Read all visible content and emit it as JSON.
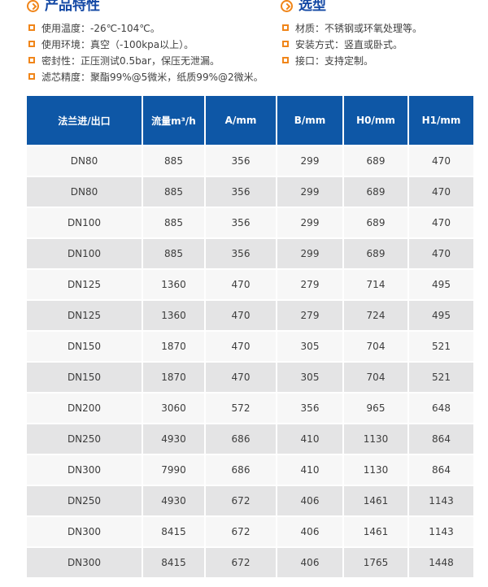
{
  "colors": {
    "accent_orange": "#f08519",
    "title_blue": "#1247a4",
    "table_header_blue": "#0e57a6",
    "row_light": "#f7f7f7",
    "row_gray": "#e4e4e5",
    "body_text": "#3d3d3d"
  },
  "sections": [
    {
      "title": "产品特性",
      "icon": "chevron-right-circle-icon",
      "bullets": [
        "使用温度：-26℃-104℃。",
        "使用环境：真空（-100kpa以上）。",
        "密封性：正压测试0.5bar，保压无泄漏。",
        "滤芯精度：聚酯99%@5微米，纸质99%@2微米。"
      ]
    },
    {
      "title": "选型",
      "icon": "chevron-right-circle-icon",
      "bullets": [
        "材质：不锈钢或环氧处理等。",
        "安装方式：竖直或卧式。",
        "接口：支持定制。"
      ]
    }
  ],
  "table": {
    "headers": [
      "法兰进/出口",
      "流量m³/h",
      "A/mm",
      "B/mm",
      "H0/mm",
      "H1/mm"
    ],
    "rows": [
      [
        "DN80",
        "885",
        "356",
        "299",
        "689",
        "470"
      ],
      [
        "DN80",
        "885",
        "356",
        "299",
        "689",
        "470"
      ],
      [
        "DN100",
        "885",
        "356",
        "299",
        "689",
        "470"
      ],
      [
        "DN100",
        "885",
        "356",
        "299",
        "689",
        "470"
      ],
      [
        "DN125",
        "1360",
        "470",
        "279",
        "714",
        "495"
      ],
      [
        "DN125",
        "1360",
        "470",
        "279",
        "724",
        "495"
      ],
      [
        "DN150",
        "1870",
        "470",
        "305",
        "704",
        "521"
      ],
      [
        "DN150",
        "1870",
        "470",
        "305",
        "704",
        "521"
      ],
      [
        "DN200",
        "3060",
        "572",
        "356",
        "965",
        "648"
      ],
      [
        "DN250",
        "4930",
        "686",
        "410",
        "1130",
        "864"
      ],
      [
        "DN300",
        "7990",
        "686",
        "410",
        "1130",
        "864"
      ],
      [
        "DN250",
        "4930",
        "672",
        "406",
        "1461",
        "1143"
      ],
      [
        "DN300",
        "8415",
        "672",
        "406",
        "1461",
        "1143"
      ],
      [
        "DN300",
        "8415",
        "672",
        "406",
        "1765",
        "1448"
      ]
    ]
  }
}
